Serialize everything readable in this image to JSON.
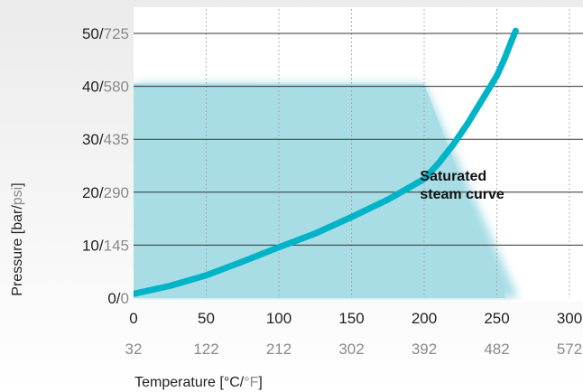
{
  "chart_data": {
    "type": "area",
    "xlabel": "Temperature [°C/°F]",
    "ylabel": "Pressure [bar/psi]",
    "xlabel_parts": {
      "text": "Temperature [°C/",
      "alt": "°F",
      "end": "]"
    },
    "ylabel_parts": {
      "text": "Pressure [bar/",
      "alt": "psi",
      "end": "]"
    },
    "xlim": [
      0,
      300
    ],
    "ylim": [
      0,
      50
    ],
    "grid": {
      "horizontal": "solid",
      "vertical": "dotted"
    },
    "x_ticks": [
      {
        "c": "0",
        "f": "32"
      },
      {
        "c": "50",
        "f": "122"
      },
      {
        "c": "100",
        "f": "212"
      },
      {
        "c": "150",
        "f": "302"
      },
      {
        "c": "200",
        "f": "392"
      },
      {
        "c": "250",
        "f": "482"
      },
      {
        "c": "300",
        "f": "572"
      }
    ],
    "y_ticks": [
      {
        "bar": "0",
        "psi": "0"
      },
      {
        "bar": "10",
        "psi": "145"
      },
      {
        "bar": "20",
        "psi": "290"
      },
      {
        "bar": "30",
        "psi": "435"
      },
      {
        "bar": "40",
        "psi": "580"
      },
      {
        "bar": "50",
        "psi": "725"
      }
    ],
    "operating_region": {
      "color": "#a8dde6",
      "x": [
        0,
        0,
        200,
        265,
        265
      ],
      "y": [
        0,
        40.5,
        40.5,
        0,
        0
      ]
    },
    "series": [
      {
        "color": "#00b4c8",
        "x": [
          0,
          25,
          50,
          75,
          100,
          125,
          150,
          175,
          200,
          210,
          220,
          230,
          240,
          250,
          255,
          260,
          263
        ],
        "y": [
          0.8,
          2.3,
          4.3,
          6.9,
          9.6,
          12.2,
          15.3,
          18.6,
          22.5,
          25.5,
          29.0,
          33.0,
          37.5,
          42.0,
          45.0,
          48.5,
          50.5
        ]
      }
    ],
    "annotations": [
      {
        "text": "Saturated",
        "x": 140,
        "y": 22.2
      },
      {
        "text": "steam curve",
        "x": 140,
        "y": 18.8
      }
    ]
  }
}
